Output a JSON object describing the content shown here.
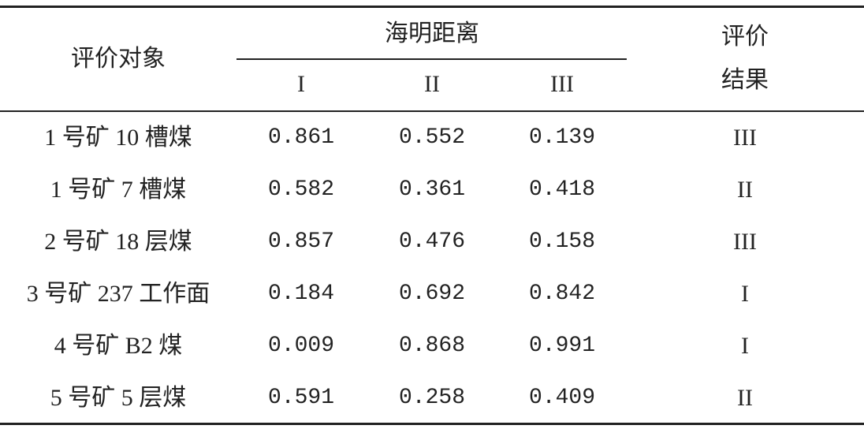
{
  "header": {
    "object": "评价对象",
    "hamming": "海明距离",
    "levels": [
      "I",
      "II",
      "III"
    ],
    "result": [
      "评价",
      "结果"
    ]
  },
  "table": {
    "rows": [
      [
        "1 号矿 10 槽煤",
        "0.861",
        "0.552",
        "0.139",
        "III"
      ],
      [
        "1 号矿 7 槽煤",
        "0.582",
        "0.361",
        "0.418",
        "II"
      ],
      [
        "2 号矿 18 层煤",
        "0.857",
        "0.476",
        "0.158",
        "III"
      ],
      [
        "3 号矿 237 工作面",
        "0.184",
        "0.692",
        "0.842",
        "I"
      ],
      [
        "4 号矿 B2 煤",
        "0.009",
        "0.868",
        "0.991",
        "I"
      ],
      [
        "5 号矿 5 层煤",
        "0.591",
        "0.258",
        "0.409",
        "II"
      ]
    ]
  }
}
